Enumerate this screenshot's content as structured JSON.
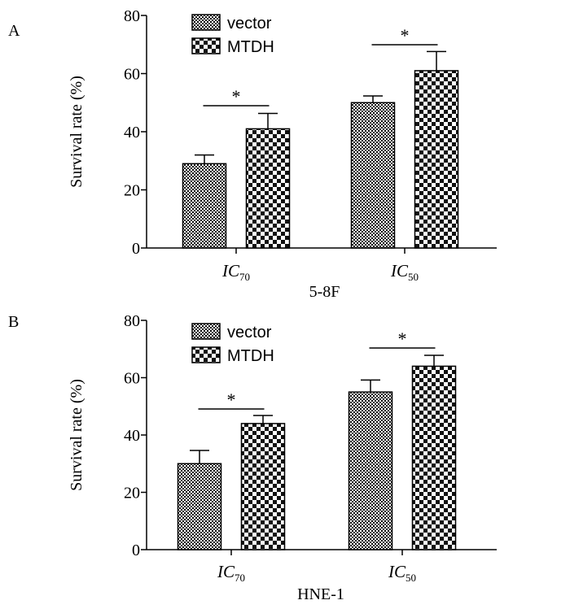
{
  "chart_data": [
    {
      "panel_label": "A",
      "type": "bar",
      "xlabel": "5-8F",
      "ylabel": "Survival rate (%)",
      "ylim": [
        0,
        80
      ],
      "yticks": [
        "0",
        "20",
        "40",
        "60",
        "80"
      ],
      "categories": [
        {
          "base": "IC",
          "sub": "70"
        },
        {
          "base": "IC",
          "sub": "50"
        }
      ],
      "series": [
        {
          "name": "vector",
          "values": [
            29,
            50
          ],
          "errors": [
            3,
            2.3
          ],
          "pattern": "fine-checker"
        },
        {
          "name": "MTDH",
          "values": [
            41,
            61
          ],
          "errors": [
            5.3,
            6.6
          ],
          "pattern": "coarse-checker"
        }
      ],
      "significance": [
        "*",
        "*"
      ],
      "legend_position": "top-left"
    },
    {
      "panel_label": "B",
      "type": "bar",
      "xlabel": "HNE-1",
      "ylabel": "Survival rate (%)",
      "ylim": [
        0,
        80
      ],
      "yticks": [
        "0",
        "20",
        "40",
        "60",
        "80"
      ],
      "categories": [
        {
          "base": "IC",
          "sub": "70"
        },
        {
          "base": "IC",
          "sub": "50"
        }
      ],
      "series": [
        {
          "name": "vector",
          "values": [
            30,
            55
          ],
          "errors": [
            4.6,
            4.2
          ],
          "pattern": "fine-checker"
        },
        {
          "name": "MTDH",
          "values": [
            44,
            64
          ],
          "errors": [
            2.8,
            3.8
          ],
          "pattern": "coarse-checker"
        }
      ],
      "significance": [
        "*",
        "*"
      ],
      "legend_position": "top-left"
    }
  ]
}
